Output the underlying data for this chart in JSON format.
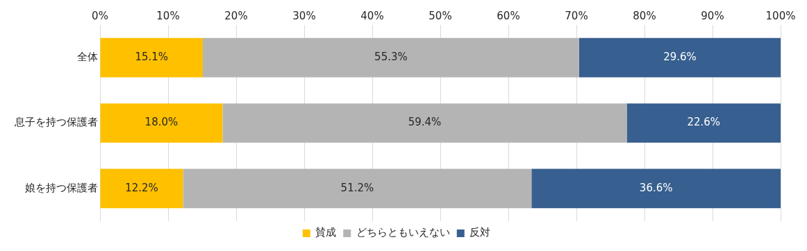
{
  "chart_data": {
    "type": "bar",
    "orientation": "horizontal",
    "stacked": true,
    "categories": [
      "全体",
      "息子を持つ保護者",
      "娘を持つ保護者"
    ],
    "series": [
      {
        "name": "賛成",
        "color": "#ffc000",
        "values": [
          15.1,
          18.0,
          12.2
        ],
        "value_labels": [
          "15.1%",
          "18.0%",
          "12.2%"
        ]
      },
      {
        "name": "どちらともいえない",
        "color": "#b4b4b4",
        "values": [
          55.3,
          59.4,
          51.2
        ],
        "value_labels": [
          "55.3%",
          "59.4%",
          "51.2%"
        ]
      },
      {
        "name": "反対",
        "color": "#375f8f",
        "values": [
          29.6,
          22.6,
          36.6
        ],
        "value_labels": [
          "29.6%",
          "22.6%",
          "36.6%"
        ]
      }
    ],
    "xlim": [
      0,
      100
    ],
    "xticks": [
      {
        "value": 0,
        "label": "0%"
      },
      {
        "value": 10,
        "label": "10%"
      },
      {
        "value": 20,
        "label": "20%"
      },
      {
        "value": 30,
        "label": "30%"
      },
      {
        "value": 40,
        "label": "40%"
      },
      {
        "value": 50,
        "label": "50%"
      },
      {
        "value": 60,
        "label": "60%"
      },
      {
        "value": 70,
        "label": "70%"
      },
      {
        "value": 80,
        "label": "80%"
      },
      {
        "value": 90,
        "label": "90%"
      },
      {
        "value": 100,
        "label": "100%"
      }
    ],
    "grid": "x",
    "legend": "bottom"
  }
}
